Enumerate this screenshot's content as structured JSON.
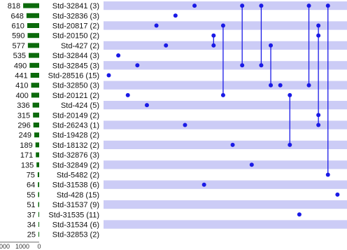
{
  "chart_data": {
    "type": "upset",
    "colors": {
      "band": "#ccccf6",
      "dot": "#1a1ae6",
      "line": "#1a1ae6",
      "bar": "#0b6a0b"
    },
    "size_axis": {
      "ticks": [
        "000",
        "1000",
        "0"
      ],
      "max": 2000
    },
    "sets": [
      {
        "label": "Std-32841 (3)",
        "size": 818
      },
      {
        "label": "Std-32836 (3)",
        "size": 648
      },
      {
        "label": "Std-20817 (2)",
        "size": 610
      },
      {
        "label": "Std-20150 (2)",
        "size": 590
      },
      {
        "label": "Std-427 (2)",
        "size": 577
      },
      {
        "label": "Std-32844 (3)",
        "size": 535
      },
      {
        "label": "Std-32845 (3)",
        "size": 490
      },
      {
        "label": "Std-28516 (15)",
        "size": 441
      },
      {
        "label": "Std-32850 (3)",
        "size": 410
      },
      {
        "label": "Std-20121 (2)",
        "size": 400
      },
      {
        "label": "Std-424 (5)",
        "size": 336
      },
      {
        "label": "Std-20149 (2)",
        "size": 315
      },
      {
        "label": "Std-26243 (1)",
        "size": 296
      },
      {
        "label": "Std-19428 (2)",
        "size": 249
      },
      {
        "label": "Std-18132 (2)",
        "size": 189
      },
      {
        "label": "Std-32876 (3)",
        "size": 171
      },
      {
        "label": "Std-32849 (2)",
        "size": 135
      },
      {
        "label": "Std-5482 (2)",
        "size": 75
      },
      {
        "label": "Std-31538 (6)",
        "size": 64
      },
      {
        "label": "Std-428 (15)",
        "size": 55
      },
      {
        "label": "Std-31537 (9)",
        "size": 51
      },
      {
        "label": "Std-31535 (11)",
        "size": 37
      },
      {
        "label": "Std-31534 (6)",
        "size": 34
      },
      {
        "label": "Std-32853 (2)",
        "size": 25
      }
    ],
    "intersections": [
      {
        "sets": [
          7
        ]
      },
      {
        "sets": [
          5
        ]
      },
      {
        "sets": [
          9
        ]
      },
      {
        "sets": [
          6
        ]
      },
      {
        "sets": [
          10
        ]
      },
      {
        "sets": [
          2
        ]
      },
      {
        "sets": [
          4
        ]
      },
      {
        "sets": [
          1
        ]
      },
      {
        "sets": [
          12
        ]
      },
      {
        "sets": [
          0
        ]
      },
      {
        "sets": [
          18
        ]
      },
      {
        "sets": [
          3,
          4
        ]
      },
      {
        "sets": [
          2,
          9
        ]
      },
      {
        "sets": [
          14
        ]
      },
      {
        "sets": [
          0,
          6
        ]
      },
      {
        "sets": [
          16
        ]
      },
      {
        "sets": [
          0,
          6
        ]
      },
      {
        "sets": [
          4,
          8
        ]
      },
      {
        "sets": [
          8
        ]
      },
      {
        "sets": [
          9,
          14
        ]
      },
      {
        "sets": [
          21
        ]
      },
      {
        "sets": [
          0,
          8
        ]
      },
      {
        "sets": [
          2,
          3,
          11,
          12
        ]
      },
      {
        "sets": [
          0,
          17
        ]
      },
      {
        "sets": [
          19
        ]
      }
    ]
  }
}
